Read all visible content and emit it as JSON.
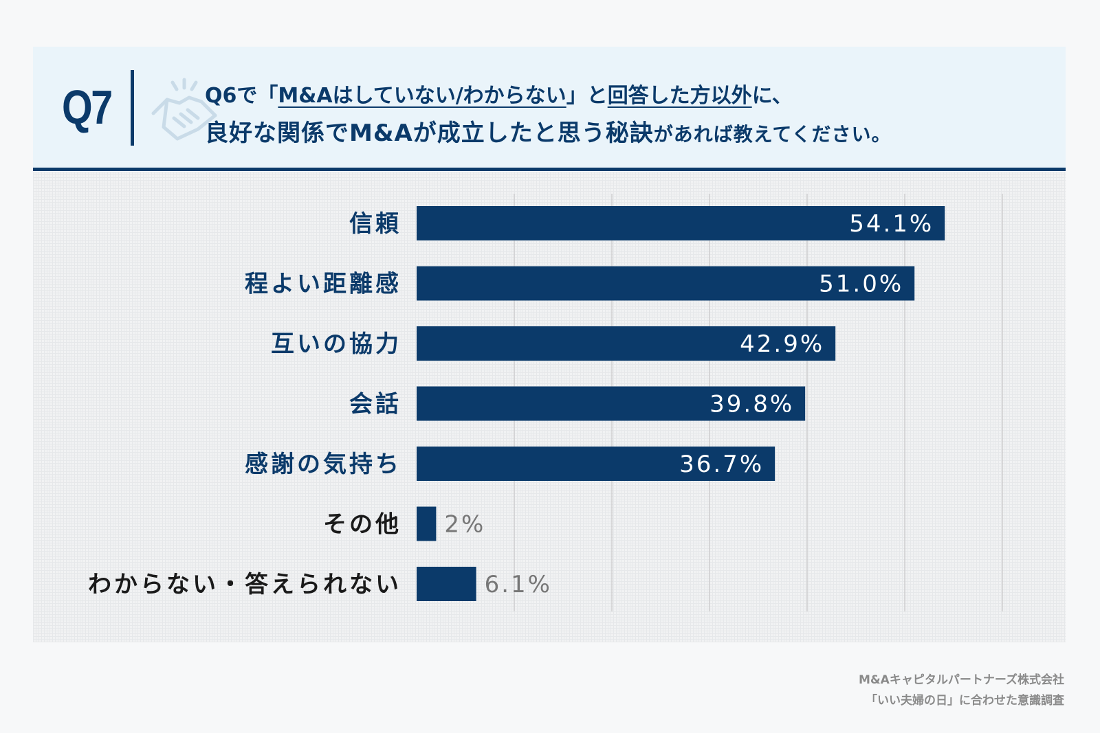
{
  "header": {
    "q_label": "Q7",
    "line1_prefix": "Q6で「",
    "line1_underlined_a": "M&Aはしていない/わからない",
    "line1_mid": "」と",
    "line1_underlined_b": "回答した方以外",
    "line1_suffix": "に、",
    "line2_main": "良好な関係でM&Aが成立したと思う秘訣",
    "line2_small": "があれば教えてください。"
  },
  "chart_data": {
    "type": "bar",
    "orientation": "horizontal",
    "categories": [
      "信頼",
      "程よい距離感",
      "互いの協力",
      "会話",
      "感謝の気持ち",
      "その他",
      "わからない・答えられない"
    ],
    "values": [
      54.1,
      51.0,
      42.9,
      39.8,
      36.7,
      2,
      6.1
    ],
    "value_labels": [
      "54.1%",
      "51.0%",
      "42.9%",
      "39.8%",
      "36.7%",
      "2%",
      "6.1%"
    ],
    "xlim": [
      0,
      60
    ],
    "grid_step": 10,
    "grid": true,
    "bar_color": "#0b3a6a",
    "label_color": "#0b3a6a",
    "label_color_other": "#1a1a1a",
    "inside_value_color": "#ffffff",
    "outside_value_color": "#777777"
  },
  "source": {
    "line1": "M&Aキャピタルパートナーズ株式会社",
    "line2": "「いい夫婦の日」に合わせた意識調査"
  }
}
